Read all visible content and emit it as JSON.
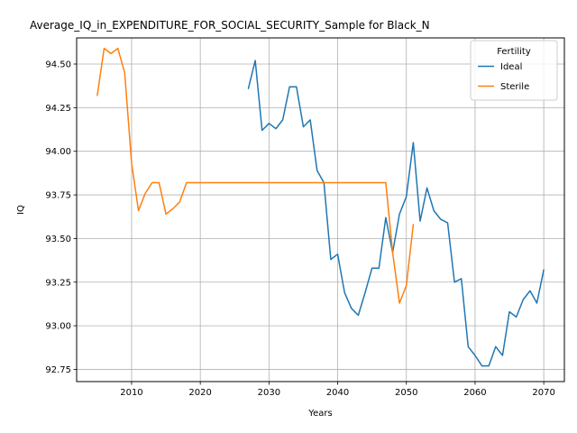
{
  "chart_data": {
    "type": "line",
    "title": "Average_IQ_in_EXPENDITURE_FOR_SOCIAL_SECURITY_Sample for Black_N",
    "xlabel": "Years",
    "ylabel": "IQ",
    "xlim": [
      2002,
      2073
    ],
    "ylim": [
      92.68,
      94.65
    ],
    "xticks": [
      2010,
      2020,
      2030,
      2040,
      2050,
      2060,
      2070
    ],
    "yticks": [
      92.75,
      93.0,
      93.25,
      93.5,
      93.75,
      94.0,
      94.25,
      94.5
    ],
    "ytick_labels": [
      "92.75",
      "93.00",
      "93.25",
      "93.50",
      "93.75",
      "94.00",
      "94.25",
      "94.50"
    ],
    "grid": true,
    "legend": {
      "title": "Fertility",
      "placement": "top-right"
    },
    "series": [
      {
        "name": "Ideal",
        "color": "#1f77b4",
        "x": [
          2027,
          2028,
          2029,
          2030,
          2031,
          2032,
          2033,
          2034,
          2035,
          2036,
          2037,
          2038,
          2039,
          2040,
          2041,
          2042,
          2043,
          2044,
          2045,
          2046,
          2047,
          2048,
          2049,
          2050,
          2051,
          2052,
          2053,
          2054,
          2055,
          2056,
          2057,
          2058,
          2059,
          2060,
          2061,
          2062,
          2063,
          2064,
          2065,
          2066,
          2067,
          2068,
          2069,
          2070
        ],
        "y": [
          94.36,
          94.52,
          94.12,
          94.16,
          94.13,
          94.18,
          94.37,
          94.37,
          94.14,
          94.18,
          93.89,
          93.82,
          93.38,
          93.41,
          93.19,
          93.1,
          93.06,
          93.19,
          93.33,
          93.33,
          93.62,
          93.42,
          93.64,
          93.74,
          94.05,
          93.6,
          93.79,
          93.66,
          93.61,
          93.59,
          93.25,
          93.27,
          92.88,
          92.83,
          92.77,
          92.77,
          92.88,
          92.83,
          93.08,
          93.05,
          93.15,
          93.2,
          93.13,
          93.32
        ]
      },
      {
        "name": "Sterile",
        "color": "#ff7f0e",
        "x": [
          2005,
          2006,
          2007,
          2008,
          2009,
          2010,
          2011,
          2012,
          2013,
          2014,
          2015,
          2016,
          2017,
          2018,
          2019,
          2020,
          2025,
          2030,
          2035,
          2040,
          2045,
          2047,
          2048,
          2049,
          2050,
          2051
        ],
        "y": [
          94.32,
          94.59,
          94.56,
          94.59,
          94.45,
          93.93,
          93.66,
          93.76,
          93.82,
          93.82,
          93.64,
          93.67,
          93.71,
          93.82,
          93.82,
          93.82,
          93.82,
          93.82,
          93.82,
          93.82,
          93.82,
          93.82,
          93.42,
          93.13,
          93.23,
          93.58
        ]
      }
    ]
  }
}
